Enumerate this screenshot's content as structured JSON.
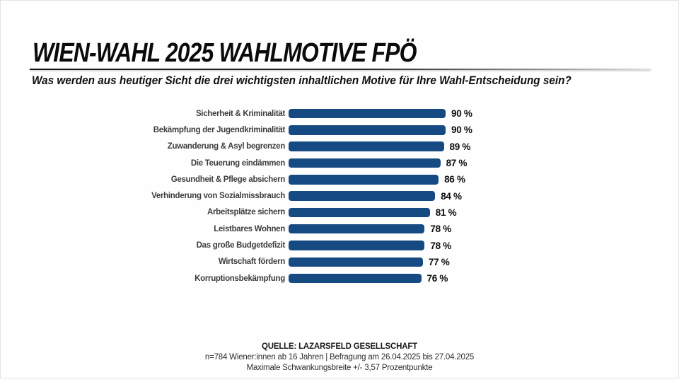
{
  "page": {
    "title": "WIEN-WAHL 2025 WAHLMOTIVE FPÖ",
    "subtitle": "Was werden aus heutiger Sicht die drei wichtigsten inhaltlichen Motive für Ihre Wahl-Entscheidung sein?"
  },
  "colors": {
    "bar": "#164a82",
    "title_text": "#0b0b0b",
    "label_text": "#3d3d3d"
  },
  "chart_data": {
    "type": "bar",
    "orientation": "horizontal",
    "title": "WIEN-WAHL 2025 WAHLMOTIVE FPÖ",
    "subtitle": "Was werden aus heutiger Sicht die drei wichtigsten inhaltlichen Motive für Ihre Wahl-Entscheidung sein?",
    "categories": [
      "Sicherheit & Kriminalität",
      "Bekämpfung der Jugendkriminalität",
      "Zuwanderung & Asyl begrenzen",
      "Die Teuerung eindämmen",
      "Gesundheit & Pflege absichern",
      "Verhinderung von Sozialmissbrauch",
      "Arbeitsplätze sichern",
      "Leistbares Wohnen",
      "Das große Budgetdefizit",
      "Wirtschaft fördern",
      "Korruptionsbekämpfung"
    ],
    "values": [
      90,
      90,
      89,
      87,
      86,
      84,
      81,
      78,
      78,
      77,
      76
    ],
    "value_suffix": " %",
    "xlim": [
      0,
      100
    ],
    "grid": false,
    "legend": false,
    "bar_color": "#164a82"
  },
  "footer": {
    "source": "QUELLE: LAZARSFELD GESELLSCHAFT",
    "sample": "n=784 Wiener:innen ab 16 Jahren | Befragung am 26.04.2025 bis 27.04.2025",
    "margin": "Maximale Schwankungsbreite +/- 3,57 Prozentpunkte"
  }
}
